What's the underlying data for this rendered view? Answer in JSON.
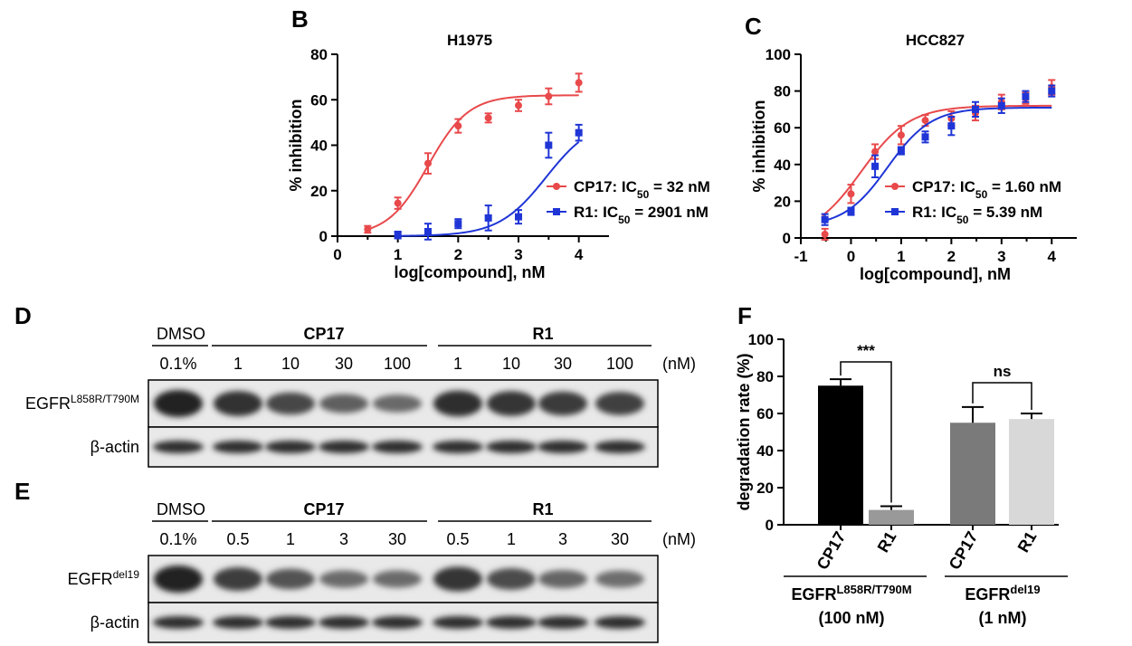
{
  "panels": {
    "B": "B",
    "C": "C",
    "D": "D",
    "E": "E",
    "F": "F"
  },
  "chart_data": [
    {
      "id": "B",
      "type": "scatter",
      "title": "H1975",
      "xlabel": "log[compound], nM",
      "ylabel": "% inhibition",
      "xlim": [
        0,
        4.5
      ],
      "ylim": [
        0,
        80
      ],
      "xticks": [
        "0",
        "1",
        "2",
        "3",
        "4"
      ],
      "yticks": [
        "0",
        "20",
        "40",
        "60",
        "80"
      ],
      "fit_curves": true,
      "series": [
        {
          "name": "CP17",
          "legend_prefix": "CP17: IC",
          "legend_sub": "50",
          "legend_suffix": " = 32 nM",
          "color": "#e8494b",
          "marker": "circle",
          "x": [
            0.5,
            1.0,
            1.5,
            2.0,
            2.5,
            3.0,
            3.5,
            4.0
          ],
          "y": [
            3,
            14.5,
            32,
            48.5,
            52,
            57.5,
            61.5,
            67.5
          ],
          "err": [
            1.5,
            2.5,
            4.5,
            3.0,
            2.0,
            2.5,
            3.5,
            4.0
          ],
          "fit": {
            "bottom": 0,
            "top": 62,
            "logIC50": 1.5,
            "hill": 1.3
          }
        },
        {
          "name": "R1",
          "legend_prefix": "R1: IC",
          "legend_sub": "50",
          "legend_suffix": " = 2901 nM",
          "color": "#1f35d6",
          "marker": "square",
          "x": [
            1.0,
            1.5,
            2.0,
            2.5,
            3.0,
            3.5,
            4.0
          ],
          "y": [
            0.5,
            2,
            5.5,
            8,
            8.5,
            40,
            45.5
          ],
          "err": [
            1.5,
            3.5,
            2.0,
            5.5,
            3.0,
            5.5,
            3.5
          ],
          "fit": {
            "bottom": 0,
            "top": 52,
            "logIC50": 3.46,
            "hill": 1.1
          }
        }
      ]
    },
    {
      "id": "C",
      "type": "scatter",
      "title": "HCC827",
      "xlabel": "log[compound], nM",
      "ylabel": "% inhibition",
      "xlim": [
        -1,
        4.5
      ],
      "ylim": [
        0,
        100
      ],
      "xticks": [
        "-1",
        "0",
        "1",
        "2",
        "3",
        "4"
      ],
      "yticks": [
        "0",
        "20",
        "40",
        "60",
        "80",
        "100"
      ],
      "fit_curves": true,
      "series": [
        {
          "name": "CP17",
          "legend_prefix": "CP17: IC",
          "legend_sub": "50",
          "legend_suffix": " = 1.60 nM",
          "color": "#e8494b",
          "marker": "circle",
          "x": [
            -0.52,
            0.0,
            0.48,
            1.0,
            1.48,
            2.0,
            2.48,
            3.0,
            3.48,
            4.0
          ],
          "y": [
            2,
            24,
            47,
            56,
            64,
            65,
            68,
            74,
            76,
            82
          ],
          "err": [
            3,
            5,
            4,
            5,
            3,
            4,
            4,
            4,
            3,
            4
          ],
          "fit": {
            "bottom": 0,
            "top": 72,
            "logIC50": 0.2,
            "hill": 0.9
          }
        },
        {
          "name": "R1",
          "legend_prefix": "R1: IC",
          "legend_sub": "50",
          "legend_suffix": " = 5.39 nM",
          "color": "#1f35d6",
          "marker": "square",
          "x": [
            -0.52,
            0.0,
            0.48,
            1.0,
            1.48,
            2.0,
            2.48,
            3.0,
            3.48,
            4.0
          ],
          "y": [
            10,
            14.5,
            39,
            47.5,
            55,
            61,
            70,
            72,
            77,
            80
          ],
          "err": [
            3,
            2,
            6,
            2,
            3,
            5,
            4,
            4,
            3,
            3
          ],
          "fit": {
            "bottom": 6,
            "top": 71,
            "logIC50": 0.73,
            "hill": 1.0
          }
        }
      ]
    },
    {
      "id": "F",
      "type": "bar",
      "ylabel": "degradation rate (%)",
      "ylim": [
        0,
        100
      ],
      "yticks": [
        "0",
        "20",
        "40",
        "60",
        "80",
        "100"
      ],
      "categories": [
        "CP17",
        "R1",
        "CP17",
        "R1"
      ],
      "values": [
        75,
        8,
        55,
        57
      ],
      "err": [
        3.5,
        2,
        8.5,
        3
      ],
      "colors": [
        "#000000",
        "#999999",
        "#7a7a7a",
        "#d8d8d8"
      ],
      "significance": [
        {
          "pair": [
            0,
            1
          ],
          "label": "***"
        },
        {
          "pair": [
            2,
            3
          ],
          "label": "ns"
        }
      ],
      "groups": [
        {
          "main": "EGFR",
          "sup": "L858R/T790M",
          "dose": "(100 nM)"
        },
        {
          "main": "EGFR",
          "sup": "del19",
          "dose": "(1 nM)"
        }
      ]
    }
  ],
  "blots": {
    "D": {
      "dmso_label": "DMSO",
      "groups": [
        "CP17",
        "R1"
      ],
      "doses": [
        "0.1%",
        "1",
        "10",
        "30",
        "100",
        "1",
        "10",
        "30",
        "100"
      ],
      "unit": "(nM)",
      "rows": [
        {
          "main": "EGFR",
          "sup": "L858R/T790M",
          "intensity": [
            1.0,
            0.88,
            0.7,
            0.5,
            0.42,
            0.92,
            0.86,
            0.8,
            0.76
          ]
        },
        {
          "main": "β-actin",
          "sup": "",
          "intensity": [
            0.9,
            0.9,
            0.9,
            0.9,
            0.9,
            0.9,
            0.9,
            0.9,
            0.9
          ]
        }
      ]
    },
    "E": {
      "dmso_label": "DMSO",
      "groups": [
        "CP17",
        "R1"
      ],
      "doses": [
        "0.1%",
        "0.5",
        "1",
        "3",
        "30",
        "0.5",
        "1",
        "3",
        "30"
      ],
      "unit": "(nM)",
      "rows": [
        {
          "main": "EGFR",
          "sup": "del19",
          "intensity": [
            1.0,
            0.78,
            0.6,
            0.4,
            0.4,
            0.85,
            0.66,
            0.45,
            0.38
          ]
        },
        {
          "main": "β-actin",
          "sup": "",
          "intensity": [
            0.9,
            0.9,
            0.9,
            0.9,
            0.9,
            0.9,
            0.9,
            0.9,
            0.9
          ]
        }
      ]
    }
  }
}
